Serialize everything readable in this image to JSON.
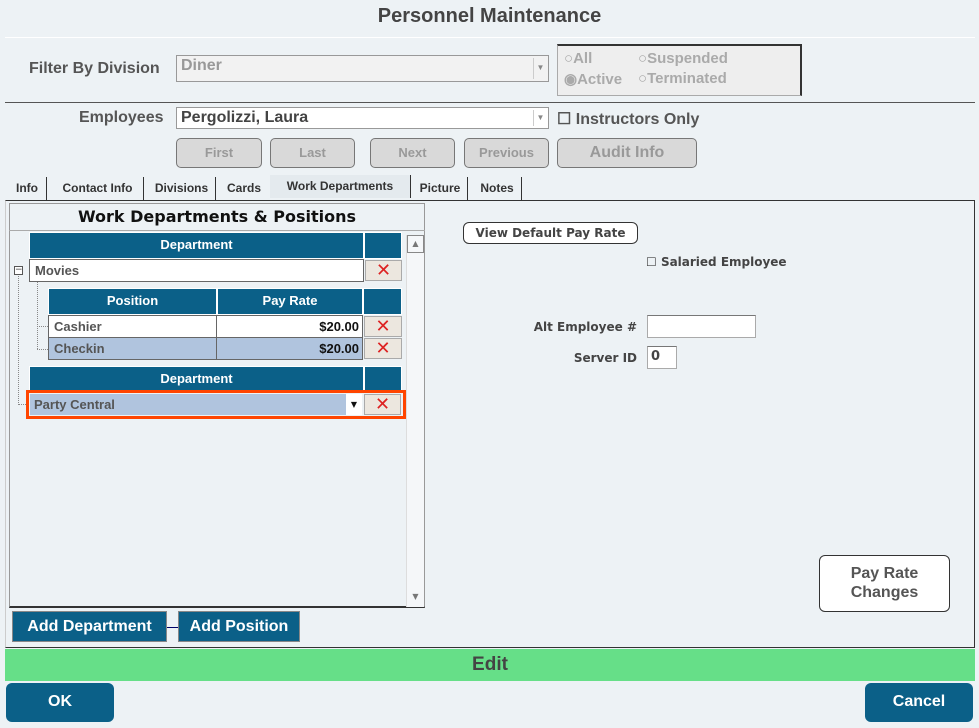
{
  "title": "Personnel Maintenance",
  "filter": {
    "label": "Filter By Division",
    "value": "Diner"
  },
  "status_options": {
    "all": "All",
    "suspended": "Suspended",
    "active": "Active",
    "terminated": "Terminated",
    "selected": "Active"
  },
  "employees": {
    "label": "Employees",
    "value": "Pergolizzi, Laura",
    "instructors_only": "Instructors Only"
  },
  "nav": {
    "first": "First",
    "last": "Last",
    "next": "Next",
    "previous": "Previous",
    "audit": "Audit Info"
  },
  "tabs": [
    {
      "label": "Info"
    },
    {
      "label": "Contact Info"
    },
    {
      "label": "Divisions"
    },
    {
      "label": "Cards"
    },
    {
      "label": "Work Departments"
    },
    {
      "label": "Picture"
    },
    {
      "label": "Notes"
    }
  ],
  "active_tab": "Work Departments",
  "grid": {
    "title": "Work Departments & Positions",
    "dept_header": "Department",
    "pos_header": "Position",
    "rate_header": "Pay Rate",
    "departments": [
      {
        "name": "Movies",
        "positions": [
          {
            "name": "Cashier",
            "rate": "$20.00"
          },
          {
            "name": "Checkin",
            "rate": "$20.00"
          }
        ]
      },
      {
        "name": "Party Central"
      }
    ]
  },
  "buttons": {
    "add_department": "Add Department",
    "add_position": "Add Position",
    "view_default": "View Default Pay Rate",
    "pay_rate_changes": "Pay Rate Changes",
    "ok": "OK",
    "cancel": "Cancel"
  },
  "fields": {
    "salaried": "Salaried Employee",
    "alt_label": "Alt Employee #",
    "alt_value": "",
    "server_label": "Server ID",
    "server_value": "0"
  },
  "mode": "Edit",
  "colors": {
    "header": "#0b6088",
    "mode_bar": "#66df88",
    "highlight": "#ff4500",
    "selected_row": "#b0c4de"
  }
}
